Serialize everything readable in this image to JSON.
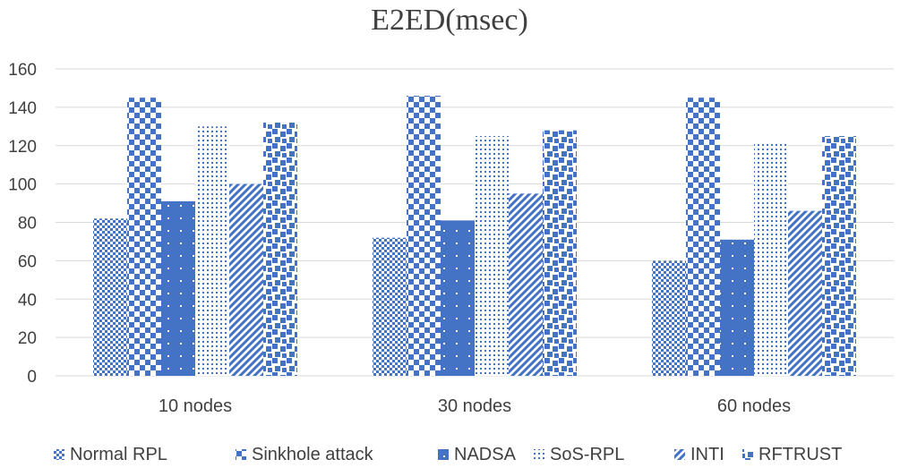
{
  "chart_data": {
    "type": "bar",
    "title": "E2ED(msec)",
    "xlabel": "",
    "ylabel": "",
    "categories": [
      "10 nodes",
      "30 nodes",
      "60 nodes"
    ],
    "ylim": [
      0,
      160
    ],
    "yticks": [
      0,
      20,
      40,
      60,
      80,
      100,
      120,
      140,
      160
    ],
    "grid": true,
    "legend_position": "bottom",
    "series": [
      {
        "name": "Normal RPL",
        "values": [
          82,
          72,
          60
        ],
        "pattern": "small-check"
      },
      {
        "name": "Sinkhole attack",
        "values": [
          145,
          146,
          145
        ],
        "pattern": "large-check"
      },
      {
        "name": "NADSA",
        "values": [
          91,
          81,
          71
        ],
        "pattern": "solid-dots"
      },
      {
        "name": "SoS-RPL",
        "values": [
          130,
          125,
          122
        ],
        "pattern": "fine-dots"
      },
      {
        "name": "INTI",
        "values": [
          100,
          95,
          86
        ],
        "pattern": "diagonal"
      },
      {
        "name": "RFTRUST",
        "values": [
          132,
          128,
          125
        ],
        "pattern": "scatter-blocks"
      }
    ],
    "color": "#4472c4",
    "gridline_color": "#d9d9d9"
  }
}
